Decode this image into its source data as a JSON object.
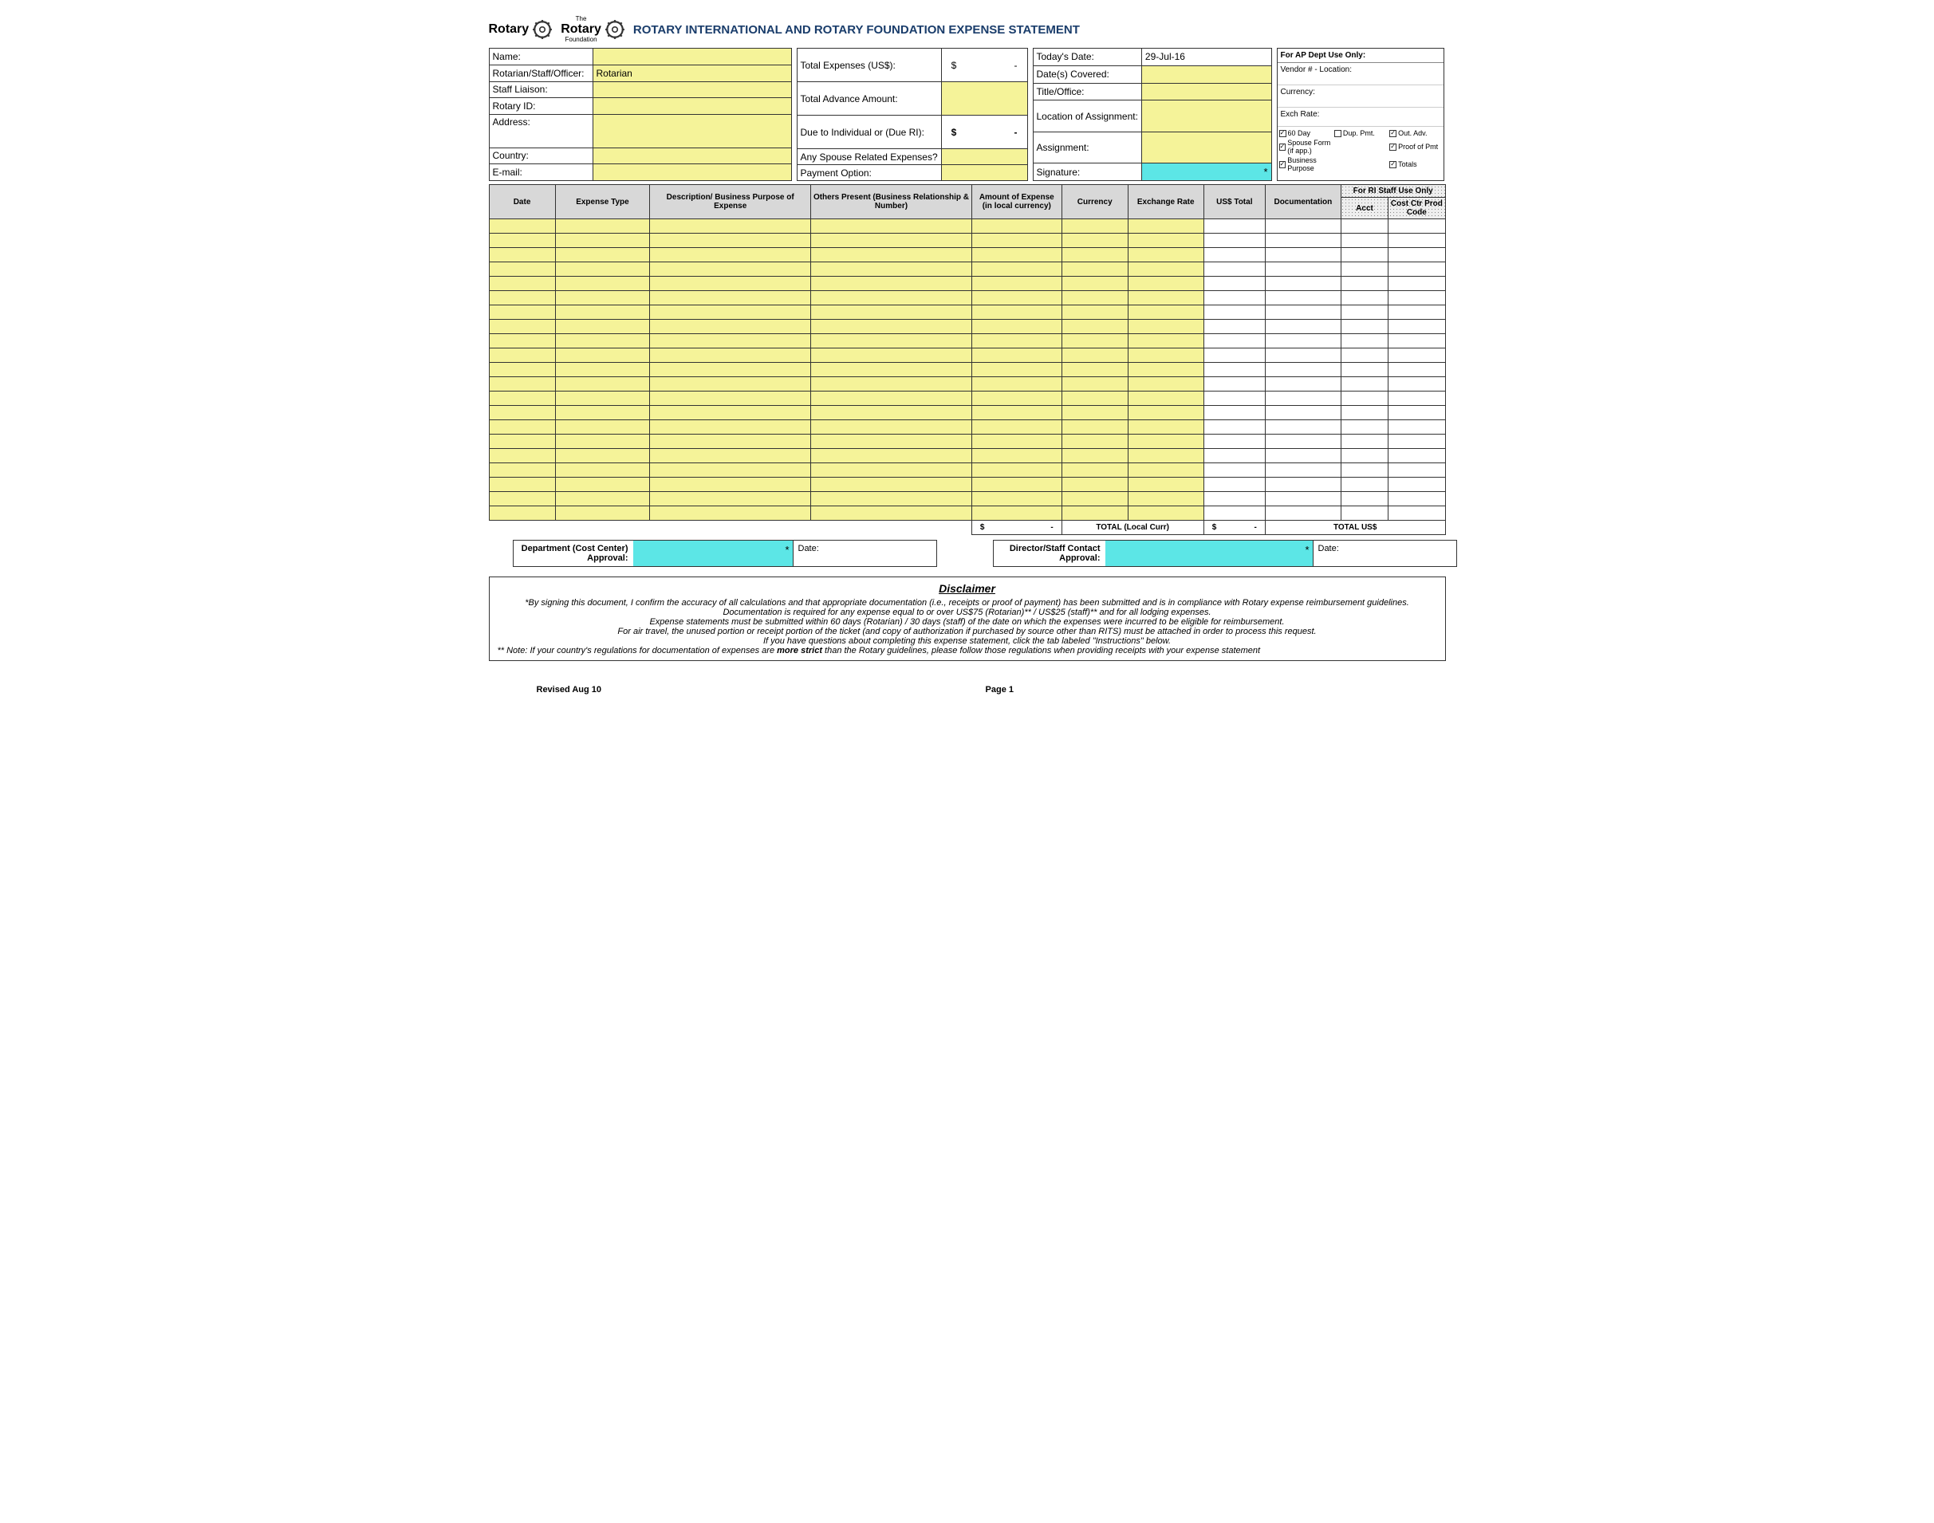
{
  "header": {
    "logo1": "Rotary",
    "logo2_top": "The",
    "logo2": "Rotary",
    "logo2_sub": "Foundation",
    "title": "ROTARY INTERNATIONAL AND ROTARY FOUNDATION EXPENSE STATEMENT"
  },
  "left_fields": {
    "name_label": "Name:",
    "name_value": "",
    "role_label": "Rotarian/Staff/Officer:",
    "role_value": "Rotarian",
    "liaison_label": "Staff Liaison:",
    "liaison_value": "",
    "rotary_id_label": "Rotary ID:",
    "rotary_id_value": "",
    "address_label": "Address:",
    "address_value": "",
    "country_label": "Country:",
    "country_value": "",
    "email_label": "E-mail:",
    "email_value": ""
  },
  "mid_fields": {
    "total_exp_label": "Total Expenses (US$):",
    "total_exp_value": "-",
    "adv_label": "Total Advance Amount:",
    "adv_value": "",
    "due_label": "Due to Individual or (Due RI):",
    "due_value": "-",
    "spouse_label": "Any Spouse Related Expenses?",
    "spouse_value": "",
    "payment_label": "Payment Option:",
    "payment_value": ""
  },
  "right_fields": {
    "today_label": "Today's Date:",
    "today_value": "29-Jul-16",
    "dates_label": "Date(s) Covered:",
    "dates_value": "",
    "title_label": "Title/Office:",
    "title_value": "",
    "loc_label": "Location of Assignment:",
    "loc_value": "",
    "assign_label": "Assignment:",
    "assign_value": "",
    "sig_label": "Signature:",
    "sig_value": "*"
  },
  "ap_box": {
    "header": "For AP Dept Use Only:",
    "vendor": "Vendor # - Location:",
    "currency": "Currency:",
    "exch": "Exch Rate:",
    "checks": [
      {
        "label": "60 Day",
        "on": true
      },
      {
        "label": "Dup. Pmt.",
        "on": false
      },
      {
        "label": "Out. Adv.",
        "on": true
      },
      {
        "label": "Spouse Form (if app.)",
        "on": true
      },
      {
        "label": "",
        "on": false
      },
      {
        "label": "Proof of Pmt",
        "on": true
      },
      {
        "label": "Business Purpose",
        "on": true
      },
      {
        "label": "",
        "on": false
      },
      {
        "label": "Totals",
        "on": true
      }
    ]
  },
  "columns": {
    "date": "Date",
    "type": "Expense Type",
    "desc": "Description/\nBusiness Purpose of Expense",
    "others": "Others Present\n(Business Relationship & Number)",
    "amount": "Amount of Expense (in local currency)",
    "curr": "Currency",
    "rate": "Exchange Rate",
    "us": "US$ Total",
    "doc": "Documentation",
    "ri_hdr": "For RI Staff Use Only",
    "acct": "Acct",
    "cost": "Cost Ctr Prod Code"
  },
  "row_count": 21,
  "totals": {
    "local_sym": "$",
    "local_val": "-",
    "local_label": "TOTAL (Local Curr)",
    "us_sym": "$",
    "us_val": "-",
    "us_label": "TOTAL US$"
  },
  "approvals": {
    "dept_label": "Department (Cost Center) Approval:",
    "dept_star": "*",
    "dept_date": "Date:",
    "dir_label": "Director/Staff Contact Approval:",
    "dir_star": "*",
    "dir_date": "Date:"
  },
  "disclaimer": {
    "title": "Disclaimer",
    "l1": "*By signing this document, I confirm the accuracy of all calculations and that appropriate documentation (i.e., receipts or proof of payment) has been submitted and is in compliance with Rotary expense reimbursement guidelines.",
    "l2": "Documentation is required for any expense equal to or over US$75 (Rotarian)** / US$25 (staff)** and for all lodging expenses.",
    "l3": "Expense statements must be submitted within 60 days (Rotarian) / 30 days (staff) of the date on which the expenses were incurred to be eligible for reimbursement.",
    "l4": "For air travel, the unused portion or receipt portion of the ticket (and copy of authorization if purchased by source other than RITS) must be attached in order to process this request.",
    "l5": "If you have questions about completing this expense statement, click the tab labeled \"Instructions\" below.",
    "l6a": "** Note: If your country's regulations for documentation of expenses are ",
    "l6b": "more strict",
    "l6c": " than the Rotary guidelines, please follow those regulations when providing receipts with your expense statement"
  },
  "footer": {
    "revised": "Revised Aug 10",
    "page": "Page 1"
  }
}
